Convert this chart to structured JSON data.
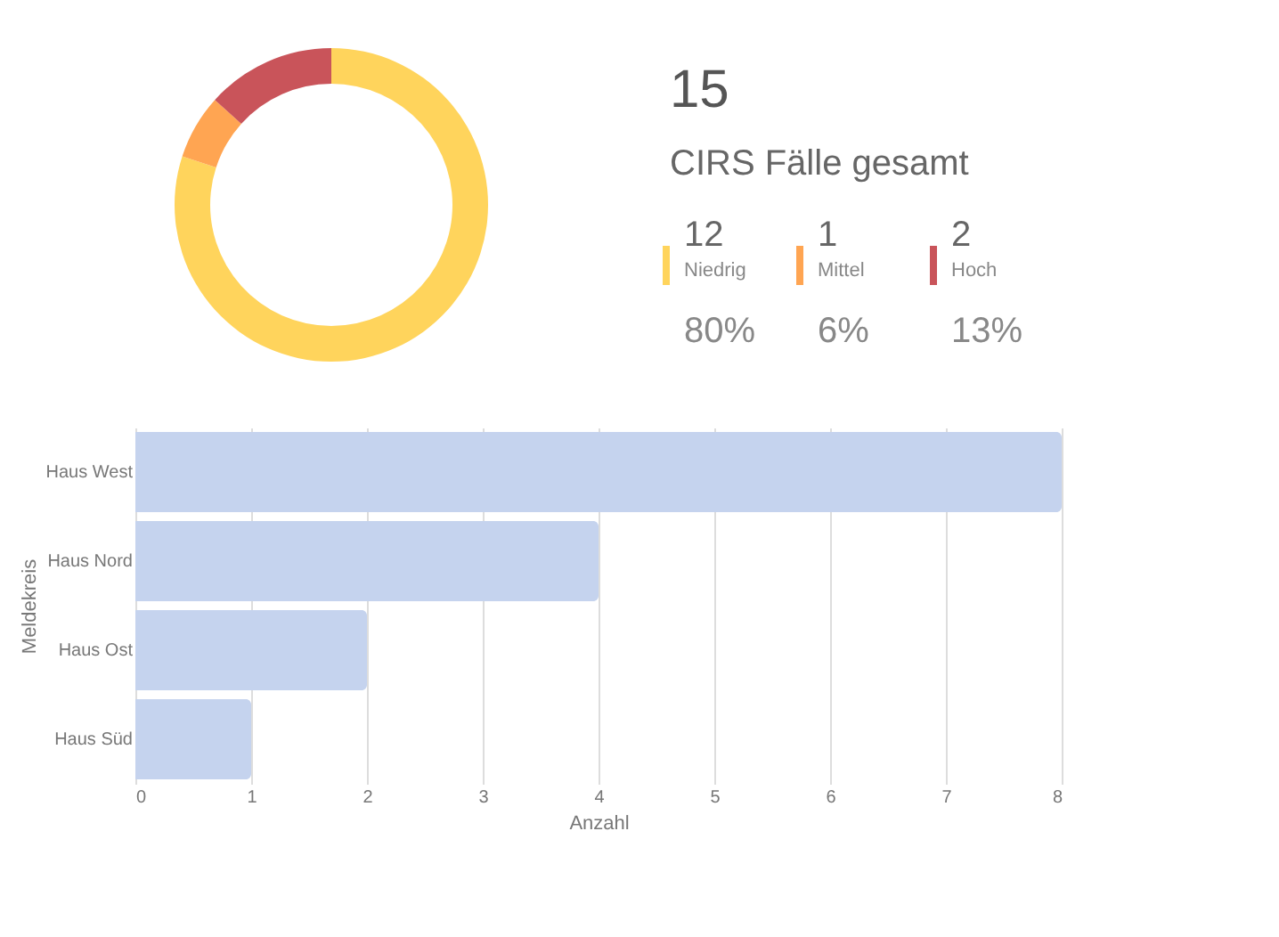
{
  "chart_data": [
    {
      "type": "donut",
      "title": "15",
      "subtitle": "CIRS Fälle gesamt",
      "categories": [
        "Niedrig",
        "Mittel",
        "Hoch"
      ],
      "values": [
        12,
        1,
        2
      ],
      "colors": [
        "#ffd45c",
        "#ffa552",
        "#c9545a"
      ],
      "data_labels": true,
      "annotations": [
        "80%",
        "6%",
        "13%"
      ],
      "legend": "right"
    },
    {
      "type": "bar",
      "orientation": "horizontal",
      "categories": [
        "Haus West",
        "Haus Nord",
        "Haus Ost",
        "Haus Süd"
      ],
      "values": [
        8,
        4,
        2,
        1
      ],
      "color": "#c5d3ee",
      "xlim": [
        0,
        8
      ],
      "xticks": [
        0,
        1,
        2,
        3,
        4,
        5,
        6,
        7,
        8
      ],
      "xlabel": "Anzahl",
      "ylabel": "Meldekreis",
      "grid": "x"
    }
  ]
}
